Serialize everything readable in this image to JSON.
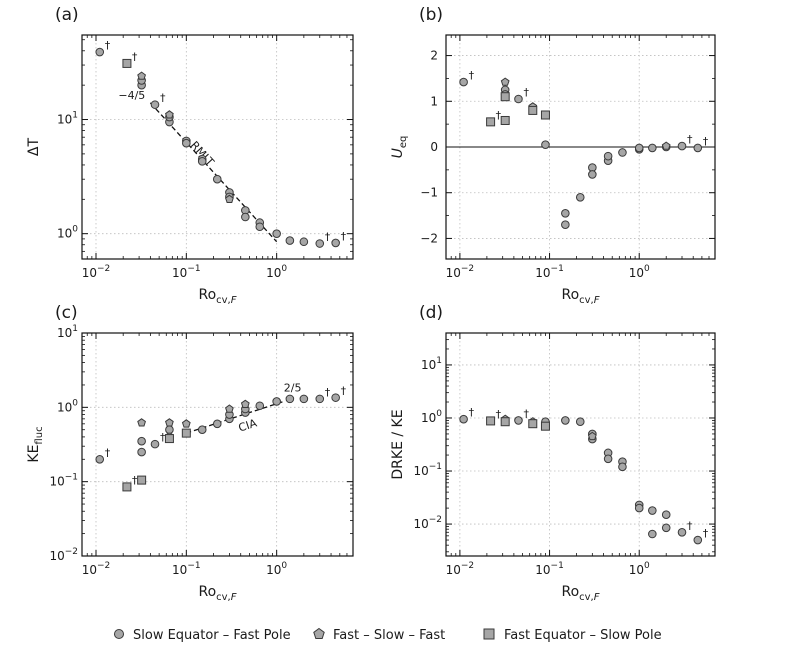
{
  "figure": {
    "legend": [
      {
        "label": "Slow Equator – Fast Pole",
        "marker": "circle"
      },
      {
        "label": "Fast – Slow – Fast",
        "marker": "pentagon"
      },
      {
        "label": "Fast Equator – Slow Pole",
        "marker": "square"
      }
    ],
    "colors": {
      "marker_fill": "#a6a6a6",
      "marker_edge": "#3a3a3a",
      "grid": "#bdbdbd",
      "axis": "#111111"
    }
  },
  "chart_data": [
    {
      "type": "scatter",
      "panel": "(a)",
      "xlabel": "Ro",
      "xlabel_sub": "cv,",
      "xlabel_sub_italic": "F",
      "ylabel": "ΔT",
      "xscale": "log",
      "yscale": "log",
      "xlim": [
        0.007,
        7
      ],
      "ylim": [
        0.6,
        55
      ],
      "xticks": [
        {
          "value": 0.01,
          "base": "10",
          "exp": "−2"
        },
        {
          "value": 0.1,
          "base": "10",
          "exp": "−1"
        },
        {
          "value": 1,
          "base": "10",
          "exp": "0"
        }
      ],
      "yticks": [
        {
          "value": 1,
          "base": "10",
          "exp": "0"
        },
        {
          "value": 10,
          "base": "10",
          "exp": "1"
        }
      ],
      "grid": true,
      "series": [
        {
          "name": "Slow Equator – Fast Pole",
          "marker": "circle",
          "points": [
            [
              0.011,
              39
            ],
            [
              0.032,
              20
            ],
            [
              0.032,
              22
            ],
            [
              0.045,
              13.5
            ],
            [
              0.065,
              9.5
            ],
            [
              0.065,
              10.5
            ],
            [
              0.1,
              6.5
            ],
            [
              0.1,
              6.2
            ],
            [
              0.15,
              4.5
            ],
            [
              0.15,
              4.3
            ],
            [
              0.22,
              3.0
            ],
            [
              0.3,
              2.3
            ],
            [
              0.3,
              2.1
            ],
            [
              0.45,
              1.6
            ],
            [
              0.45,
              1.4
            ],
            [
              0.65,
              1.25
            ],
            [
              0.65,
              1.15
            ],
            [
              1.0,
              1.0
            ],
            [
              1.4,
              0.87
            ],
            [
              2.0,
              0.85
            ],
            [
              3.0,
              0.82
            ],
            [
              4.5,
              0.83
            ]
          ]
        },
        {
          "name": "Fast – Slow – Fast",
          "marker": "pentagon",
          "points": [
            [
              0.032,
              24
            ],
            [
              0.065,
              11
            ],
            [
              0.3,
              2.0
            ]
          ]
        },
        {
          "name": "Fast Equator – Slow Pole",
          "marker": "square",
          "points": [
            [
              0.022,
              31
            ]
          ]
        }
      ],
      "fit_line": {
        "points": [
          [
            0.04,
            14
          ],
          [
            1.0,
            0.85
          ]
        ],
        "slope_label": "−4/5",
        "label": "RMLT"
      },
      "daggers": [
        [
          0.011,
          39
        ],
        [
          0.022,
          31
        ],
        [
          0.045,
          13.5
        ],
        [
          3.0,
          0.82
        ],
        [
          4.5,
          0.83
        ]
      ]
    },
    {
      "type": "scatter",
      "panel": "(b)",
      "xlabel": "Ro",
      "xlabel_sub": "cv,",
      "xlabel_sub_italic": "F",
      "ylabel": "U",
      "ylabel_sub": "eq",
      "xscale": "log",
      "yscale": "linear",
      "xlim": [
        0.007,
        7
      ],
      "ylim": [
        -2.45,
        2.45
      ],
      "xticks": [
        {
          "value": 0.01,
          "base": "10",
          "exp": "−2"
        },
        {
          "value": 0.1,
          "base": "10",
          "exp": "−1"
        },
        {
          "value": 1,
          "base": "10",
          "exp": "0"
        }
      ],
      "yticks": [
        {
          "value": -2,
          "label": "−2"
        },
        {
          "value": -1,
          "label": "−1"
        },
        {
          "value": 0,
          "label": "0"
        },
        {
          "value": 1,
          "label": "1"
        },
        {
          "value": 2,
          "label": "2"
        }
      ],
      "grid": true,
      "zero_line": 0,
      "series": [
        {
          "name": "Slow Equator – Fast Pole",
          "marker": "circle",
          "points": [
            [
              0.011,
              1.42
            ],
            [
              0.032,
              1.25
            ],
            [
              0.032,
              1.15
            ],
            [
              0.045,
              1.05
            ],
            [
              0.065,
              0.85
            ],
            [
              0.09,
              0.05
            ],
            [
              0.15,
              -1.45
            ],
            [
              0.15,
              -1.7
            ],
            [
              0.22,
              -1.1
            ],
            [
              0.3,
              -0.45
            ],
            [
              0.3,
              -0.6
            ],
            [
              0.45,
              -0.3
            ],
            [
              0.45,
              -0.2
            ],
            [
              0.65,
              -0.12
            ],
            [
              1.0,
              -0.05
            ],
            [
              1.0,
              -0.02
            ],
            [
              1.4,
              -0.02
            ],
            [
              2.0,
              0.0
            ],
            [
              3.0,
              0.02
            ],
            [
              4.5,
              -0.02
            ]
          ]
        },
        {
          "name": "Fast – Slow – Fast",
          "marker": "pentagon",
          "points": [
            [
              0.032,
              1.42
            ],
            [
              0.065,
              0.88
            ],
            [
              2.0,
              0.02
            ]
          ]
        },
        {
          "name": "Fast Equator – Slow Pole",
          "marker": "square",
          "points": [
            [
              0.022,
              0.55
            ],
            [
              0.032,
              0.58
            ],
            [
              0.032,
              1.1
            ],
            [
              0.065,
              0.8
            ],
            [
              0.09,
              0.7
            ]
          ]
        }
      ],
      "daggers": [
        [
          0.011,
          1.42
        ],
        [
          0.022,
          0.55
        ],
        [
          0.045,
          1.05
        ],
        [
          3.0,
          0.02
        ],
        [
          4.5,
          -0.02
        ]
      ]
    },
    {
      "type": "scatter",
      "panel": "(c)",
      "xlabel": "Ro",
      "xlabel_sub": "cv,",
      "xlabel_sub_italic": "F",
      "ylabel": "KE",
      "ylabel_sub": "fluc",
      "xscale": "log",
      "yscale": "log",
      "xlim": [
        0.007,
        7
      ],
      "ylim": [
        0.01,
        10
      ],
      "xticks": [
        {
          "value": 0.01,
          "base": "10",
          "exp": "−2"
        },
        {
          "value": 0.1,
          "base": "10",
          "exp": "−1"
        },
        {
          "value": 1,
          "base": "10",
          "exp": "0"
        }
      ],
      "yticks": [
        {
          "value": 0.01,
          "base": "10",
          "exp": "−2"
        },
        {
          "value": 0.1,
          "base": "10",
          "exp": "−1"
        },
        {
          "value": 1,
          "base": "10",
          "exp": "0"
        },
        {
          "value": 10,
          "base": "10",
          "exp": "1"
        }
      ],
      "grid": true,
      "series": [
        {
          "name": "Slow Equator – Fast Pole",
          "marker": "circle",
          "points": [
            [
              0.011,
              0.2
            ],
            [
              0.032,
              0.35
            ],
            [
              0.032,
              0.25
            ],
            [
              0.045,
              0.32
            ],
            [
              0.065,
              0.5
            ],
            [
              0.065,
              0.4
            ],
            [
              0.1,
              0.45
            ],
            [
              0.15,
              0.5
            ],
            [
              0.22,
              0.6
            ],
            [
              0.3,
              0.7
            ],
            [
              0.3,
              0.8
            ],
            [
              0.45,
              0.85
            ],
            [
              0.45,
              0.95
            ],
            [
              0.65,
              1.05
            ],
            [
              1.0,
              1.2
            ],
            [
              1.4,
              1.3
            ],
            [
              2.0,
              1.3
            ],
            [
              3.0,
              1.3
            ],
            [
              4.5,
              1.35
            ]
          ]
        },
        {
          "name": "Fast – Slow – Fast",
          "marker": "pentagon",
          "points": [
            [
              0.032,
              0.62
            ],
            [
              0.065,
              0.62
            ],
            [
              0.1,
              0.6
            ],
            [
              0.3,
              0.95
            ],
            [
              0.45,
              1.1
            ]
          ]
        },
        {
          "name": "Fast Equator – Slow Pole",
          "marker": "square",
          "points": [
            [
              0.022,
              0.085
            ],
            [
              0.032,
              0.105
            ],
            [
              0.065,
              0.38
            ],
            [
              0.1,
              0.45
            ]
          ]
        }
      ],
      "fit_line": {
        "points": [
          [
            0.1,
            0.45
          ],
          [
            1.2,
            1.2
          ]
        ],
        "slope_label": "2/5",
        "label": "CIA"
      },
      "daggers": [
        [
          0.011,
          0.2
        ],
        [
          0.022,
          0.085
        ],
        [
          0.045,
          0.32
        ],
        [
          3.0,
          1.3
        ],
        [
          4.5,
          1.35
        ]
      ]
    },
    {
      "type": "scatter",
      "panel": "(d)",
      "xlabel": "Ro",
      "xlabel_sub": "cv,",
      "xlabel_sub_italic": "F",
      "ylabel": "DRKE / KE",
      "xscale": "log",
      "yscale": "log",
      "xlim": [
        0.007,
        7
      ],
      "ylim": [
        0.0025,
        40
      ],
      "xticks": [
        {
          "value": 0.01,
          "base": "10",
          "exp": "−2"
        },
        {
          "value": 0.1,
          "base": "10",
          "exp": "−1"
        },
        {
          "value": 1,
          "base": "10",
          "exp": "0"
        }
      ],
      "yticks": [
        {
          "value": 0.01,
          "base": "10",
          "exp": "−2"
        },
        {
          "value": 0.1,
          "base": "10",
          "exp": "−1"
        },
        {
          "value": 1,
          "base": "10",
          "exp": "0"
        },
        {
          "value": 10,
          "base": "10",
          "exp": "1"
        }
      ],
      "grid": true,
      "series": [
        {
          "name": "Slow Equator – Fast Pole",
          "marker": "circle",
          "points": [
            [
              0.011,
              0.95
            ],
            [
              0.032,
              0.9
            ],
            [
              0.045,
              0.9
            ],
            [
              0.065,
              0.8
            ],
            [
              0.09,
              0.85
            ],
            [
              0.15,
              0.9
            ],
            [
              0.22,
              0.85
            ],
            [
              0.3,
              0.5
            ],
            [
              0.3,
              0.4
            ],
            [
              0.45,
              0.22
            ],
            [
              0.45,
              0.17
            ],
            [
              0.65,
              0.15
            ],
            [
              0.65,
              0.12
            ],
            [
              1.0,
              0.023
            ],
            [
              1.0,
              0.02
            ],
            [
              1.4,
              0.018
            ],
            [
              1.4,
              0.0065
            ],
            [
              2.0,
              0.015
            ],
            [
              2.0,
              0.0085
            ],
            [
              3.0,
              0.007
            ],
            [
              4.5,
              0.005
            ]
          ]
        },
        {
          "name": "Fast – Slow – Fast",
          "marker": "pentagon",
          "points": [
            [
              0.032,
              0.95
            ],
            [
              0.065,
              0.85
            ],
            [
              0.3,
              0.45
            ]
          ]
        },
        {
          "name": "Fast Equator – Slow Pole",
          "marker": "square",
          "points": [
            [
              0.022,
              0.88
            ],
            [
              0.032,
              0.85
            ],
            [
              0.065,
              0.78
            ],
            [
              0.09,
              0.7
            ]
          ]
        }
      ],
      "daggers": [
        [
          0.011,
          0.95
        ],
        [
          0.022,
          0.88
        ],
        [
          0.045,
          0.9
        ],
        [
          3.0,
          0.007
        ],
        [
          4.5,
          0.005
        ]
      ]
    }
  ]
}
